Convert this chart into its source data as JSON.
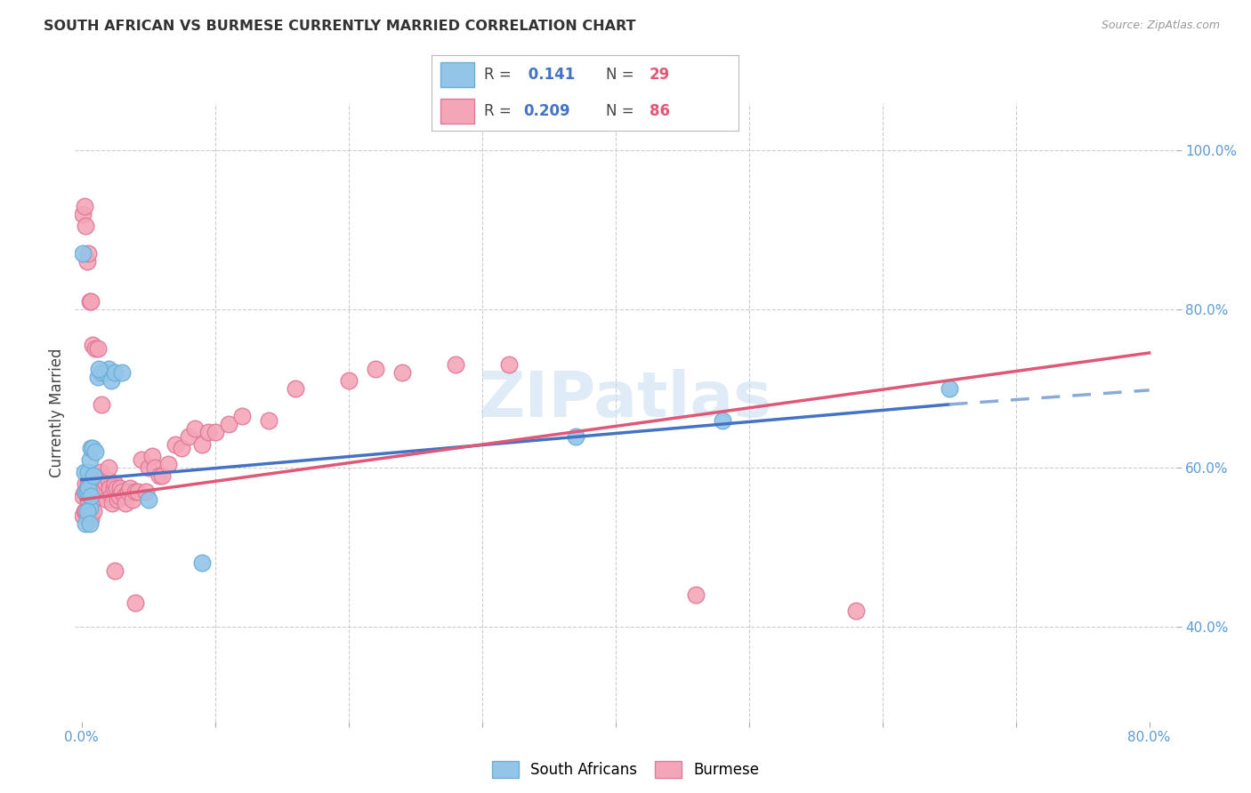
{
  "title": "SOUTH AFRICAN VS BURMESE CURRENTLY MARRIED CORRELATION CHART",
  "source": "Source: ZipAtlas.com",
  "ylabel": "Currently Married",
  "xlim": [
    -0.005,
    0.82
  ],
  "ylim": [
    0.28,
    1.06
  ],
  "xticks": [
    0.0,
    0.1,
    0.2,
    0.3,
    0.4,
    0.5,
    0.6,
    0.7,
    0.8
  ],
  "xticklabels": [
    "0.0%",
    "",
    "",
    "",
    "",
    "",
    "",
    "",
    "80.0%"
  ],
  "yticks_right": [
    0.4,
    0.6,
    0.8,
    1.0
  ],
  "yticklabels_right": [
    "40.0%",
    "60.0%",
    "80.0%",
    "100.0%"
  ],
  "watermark": "ZIPatlas",
  "legend": {
    "blue_r": "0.141",
    "blue_n": "29",
    "pink_r": "0.209",
    "pink_n": "86"
  },
  "sa_color": "#92C5E8",
  "sa_edge": "#6AAED6",
  "bu_color": "#F4A6B8",
  "bu_edge": "#E07898",
  "blue_line": "#4472C4",
  "pink_line": "#E05878",
  "grid_color": "#CCCCCC",
  "sa_x": [
    0.001,
    0.002,
    0.003,
    0.004,
    0.005,
    0.005,
    0.006,
    0.006,
    0.007,
    0.007,
    0.008,
    0.009,
    0.01,
    0.012,
    0.015,
    0.018,
    0.02,
    0.022,
    0.025,
    0.03,
    0.003,
    0.004,
    0.006,
    0.013,
    0.05,
    0.09,
    0.37,
    0.48,
    0.65
  ],
  "sa_y": [
    0.87,
    0.595,
    0.57,
    0.57,
    0.595,
    0.575,
    0.61,
    0.55,
    0.625,
    0.565,
    0.625,
    0.59,
    0.62,
    0.715,
    0.72,
    0.72,
    0.725,
    0.71,
    0.72,
    0.72,
    0.53,
    0.545,
    0.53,
    0.725,
    0.56,
    0.48,
    0.64,
    0.66,
    0.7
  ],
  "bu_x": [
    0.001,
    0.001,
    0.002,
    0.002,
    0.003,
    0.003,
    0.004,
    0.004,
    0.005,
    0.005,
    0.006,
    0.006,
    0.007,
    0.007,
    0.008,
    0.008,
    0.009,
    0.009,
    0.01,
    0.011,
    0.012,
    0.013,
    0.014,
    0.015,
    0.016,
    0.017,
    0.018,
    0.019,
    0.02,
    0.021,
    0.022,
    0.023,
    0.024,
    0.025,
    0.026,
    0.027,
    0.028,
    0.029,
    0.03,
    0.032,
    0.033,
    0.035,
    0.036,
    0.038,
    0.04,
    0.042,
    0.045,
    0.048,
    0.05,
    0.053,
    0.055,
    0.058,
    0.06,
    0.065,
    0.07,
    0.075,
    0.08,
    0.085,
    0.09,
    0.095,
    0.1,
    0.11,
    0.12,
    0.14,
    0.16,
    0.2,
    0.22,
    0.24,
    0.28,
    0.32,
    0.001,
    0.002,
    0.003,
    0.004,
    0.005,
    0.006,
    0.007,
    0.008,
    0.01,
    0.012,
    0.015,
    0.02,
    0.025,
    0.04,
    0.46,
    0.58
  ],
  "bu_y": [
    0.565,
    0.54,
    0.57,
    0.545,
    0.58,
    0.545,
    0.565,
    0.54,
    0.58,
    0.56,
    0.585,
    0.545,
    0.575,
    0.535,
    0.585,
    0.56,
    0.56,
    0.545,
    0.575,
    0.59,
    0.585,
    0.57,
    0.595,
    0.575,
    0.58,
    0.575,
    0.58,
    0.56,
    0.585,
    0.575,
    0.565,
    0.555,
    0.575,
    0.58,
    0.575,
    0.56,
    0.565,
    0.575,
    0.57,
    0.565,
    0.555,
    0.57,
    0.575,
    0.56,
    0.57,
    0.57,
    0.61,
    0.57,
    0.6,
    0.615,
    0.6,
    0.59,
    0.59,
    0.605,
    0.63,
    0.625,
    0.64,
    0.65,
    0.63,
    0.645,
    0.645,
    0.655,
    0.665,
    0.66,
    0.7,
    0.71,
    0.725,
    0.72,
    0.73,
    0.73,
    0.92,
    0.93,
    0.905,
    0.86,
    0.87,
    0.81,
    0.81,
    0.755,
    0.75,
    0.75,
    0.68,
    0.6,
    0.47,
    0.43,
    0.44,
    0.42
  ]
}
